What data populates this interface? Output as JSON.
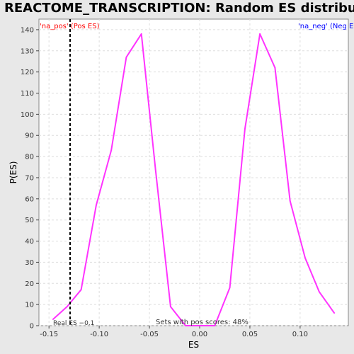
{
  "chart_data": {
    "type": "line",
    "title": "REACTOME_TRANSCRIPTION: Random ES distribution",
    "xlabel": "ES",
    "ylabel": "P(ES)",
    "xlim": [
      -0.16,
      0.148
    ],
    "ylim": [
      0,
      145
    ],
    "x_ticks": [
      -0.15,
      -0.1,
      -0.05,
      0.0,
      0.05,
      0.1
    ],
    "x_tick_labels": [
      "-0.15",
      "-0.10",
      "-0.05",
      "0.00",
      "0.05",
      "0.10"
    ],
    "y_ticks": [
      0,
      10,
      20,
      30,
      40,
      50,
      60,
      70,
      80,
      90,
      100,
      110,
      120,
      130,
      140
    ],
    "grid": true,
    "series": [
      {
        "color": "#ff33ff",
        "x": [
          -0.146,
          -0.132,
          -0.118,
          -0.103,
          -0.088,
          -0.073,
          -0.058,
          -0.044,
          -0.029,
          -0.014,
          0.0,
          0.015,
          0.03,
          0.045,
          0.06,
          0.075,
          0.09,
          0.105,
          0.119,
          0.134
        ],
        "y": [
          3,
          9,
          17,
          57,
          83,
          127,
          138,
          74,
          9,
          0,
          0,
          0,
          18,
          93,
          138,
          122,
          59,
          32,
          16,
          6
        ]
      }
    ],
    "real_es": {
      "x": -0.129,
      "label": "Real ES −0.1"
    },
    "legend_pos": {
      "text": "'na_pos' (Pos ES)",
      "color": "#ff0000"
    },
    "legend_neg": {
      "text": "'na_neg' (Neg ES)",
      "color": "#0000ff"
    },
    "annotation": "Sets with pos scores: 48%"
  }
}
